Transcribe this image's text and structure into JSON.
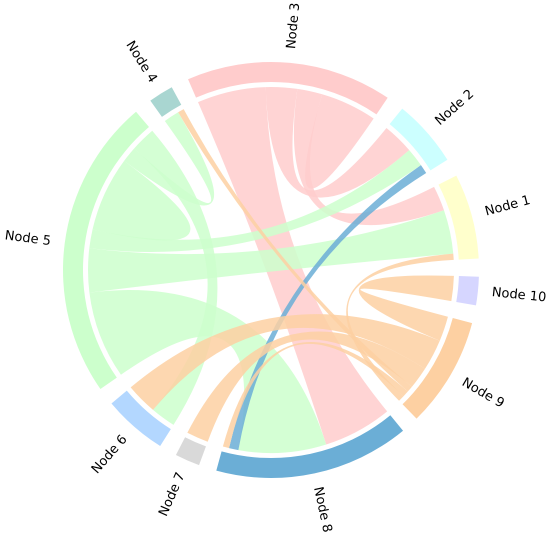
{
  "chart_data": {
    "type": "chord",
    "nodes": [
      {
        "name": "Node 1",
        "color": "#ffffcc"
      },
      {
        "name": "Node 10",
        "color": "#d6d6ff"
      },
      {
        "name": "Node 9",
        "color": "#fdd0a2"
      },
      {
        "name": "Node 8",
        "color": "#6baed6"
      },
      {
        "name": "Node 7",
        "color": "#d9d9d9"
      },
      {
        "name": "Node 6",
        "color": "#b3d7ff"
      },
      {
        "name": "Node 5",
        "color": "#ccffcc"
      },
      {
        "name": "Node 4",
        "color": "#a9d6d1"
      },
      {
        "name": "Node 3",
        "color": "#ffcccc"
      },
      {
        "name": "Node 2",
        "color": "#ccffff"
      }
    ],
    "links": [
      {
        "source": 8,
        "target": 3,
        "value": 22
      },
      {
        "source": 8,
        "target": 9,
        "value": 10
      },
      {
        "source": 8,
        "target": 0,
        "value": 8
      },
      {
        "source": 8,
        "target": 8,
        "value": 9
      },
      {
        "source": 6,
        "target": 3,
        "value": 28
      },
      {
        "source": 6,
        "target": 0,
        "value": 14
      },
      {
        "source": 6,
        "target": 9,
        "value": 6
      },
      {
        "source": 6,
        "target": 6,
        "value": 12
      },
      {
        "source": 6,
        "target": 7,
        "value": 5
      },
      {
        "source": 6,
        "target": 5,
        "value": 8
      },
      {
        "source": 3,
        "target": 9,
        "value": 3
      },
      {
        "source": 2,
        "target": 1,
        "value": 8
      },
      {
        "source": 2,
        "target": 5,
        "value": 10
      },
      {
        "source": 2,
        "target": 4,
        "value": 7
      },
      {
        "source": 2,
        "target": 7,
        "value": 2
      },
      {
        "source": 2,
        "target": 3,
        "value": 2
      },
      {
        "source": 2,
        "target": 0,
        "value": 2
      }
    ]
  }
}
